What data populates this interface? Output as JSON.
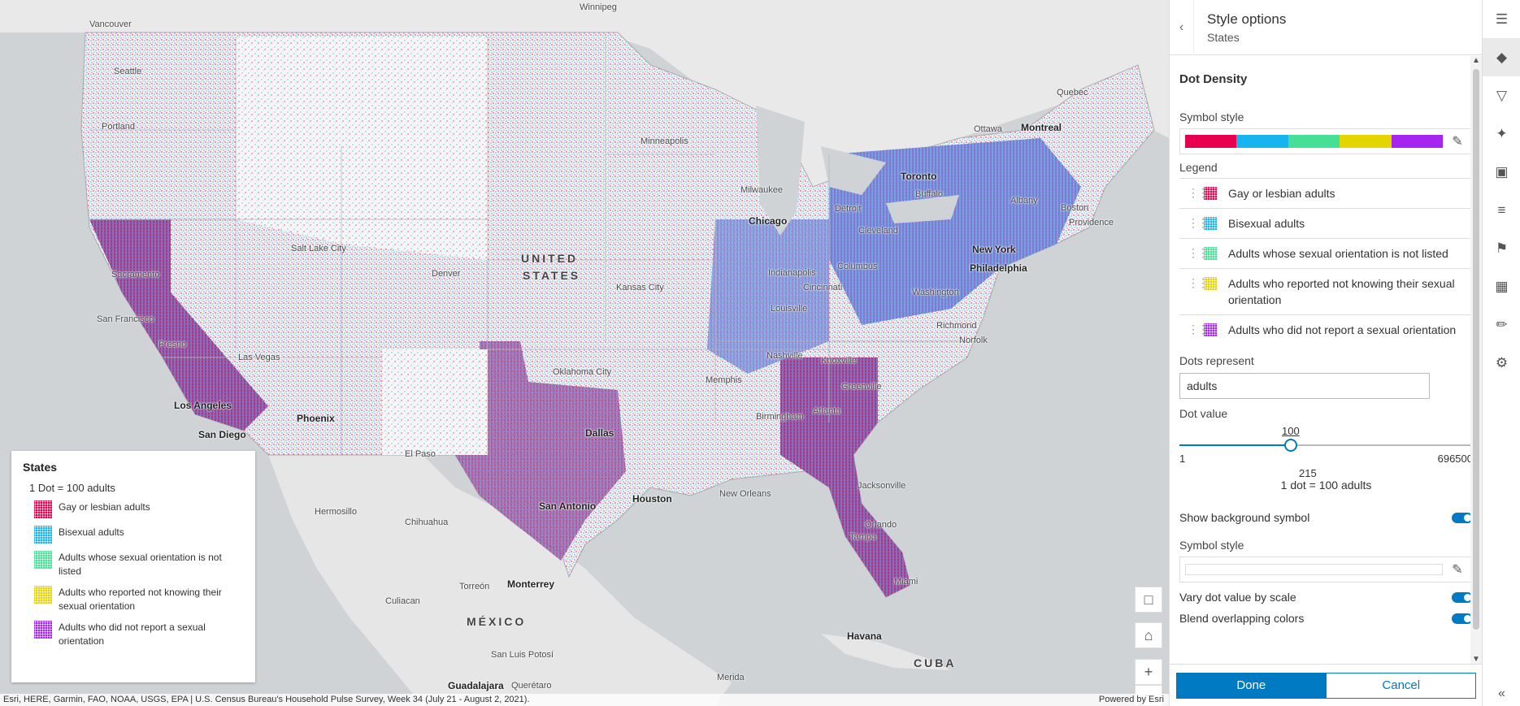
{
  "map": {
    "cities": [
      {
        "name": "Winnipeg",
        "big": false
      },
      {
        "name": "Vancouver",
        "big": false
      },
      {
        "name": "Seattle",
        "big": false
      },
      {
        "name": "Portland",
        "big": false
      },
      {
        "name": "Minneapolis",
        "big": false
      },
      {
        "name": "Milwaukee",
        "big": false
      },
      {
        "name": "Chicago",
        "big": true
      },
      {
        "name": "Detroit",
        "big": false
      },
      {
        "name": "Toronto",
        "big": true
      },
      {
        "name": "Ottawa",
        "big": false
      },
      {
        "name": "Montreal",
        "big": true
      },
      {
        "name": "Quebec",
        "big": false
      },
      {
        "name": "Buffalo",
        "big": false
      },
      {
        "name": "Albany",
        "big": false
      },
      {
        "name": "Boston",
        "big": false
      },
      {
        "name": "Providence",
        "big": false
      },
      {
        "name": "New York",
        "big": true
      },
      {
        "name": "Philadelphia",
        "big": true
      },
      {
        "name": "Washington",
        "big": false
      },
      {
        "name": "Richmond",
        "big": false
      },
      {
        "name": "Norfolk",
        "big": false
      },
      {
        "name": "Cleveland",
        "big": false
      },
      {
        "name": "Columbus",
        "big": false
      },
      {
        "name": "Indianapolis",
        "big": false
      },
      {
        "name": "Cincinnati",
        "big": false
      },
      {
        "name": "Louisville",
        "big": false
      },
      {
        "name": "Nashville",
        "big": false
      },
      {
        "name": "Knoxville",
        "big": false
      },
      {
        "name": "Memphis",
        "big": false
      },
      {
        "name": "Birmingham",
        "big": false
      },
      {
        "name": "Atlanta",
        "big": false
      },
      {
        "name": "Greenville",
        "big": false
      },
      {
        "name": "Jacksonville",
        "big": false
      },
      {
        "name": "Orlando",
        "big": false
      },
      {
        "name": "Tampa",
        "big": false
      },
      {
        "name": "Miami",
        "big": false
      },
      {
        "name": "New Orleans",
        "big": false
      },
      {
        "name": "Houston",
        "big": true
      },
      {
        "name": "San Antonio",
        "big": true
      },
      {
        "name": "Dallas",
        "big": true
      },
      {
        "name": "Oklahoma City",
        "big": false
      },
      {
        "name": "Kansas City",
        "big": false
      },
      {
        "name": "Denver",
        "big": false
      },
      {
        "name": "Salt Lake City",
        "big": false
      },
      {
        "name": "Sacramento",
        "big": false
      },
      {
        "name": "San Francisco",
        "big": false
      },
      {
        "name": "Fresno",
        "big": false
      },
      {
        "name": "Las Vegas",
        "big": false
      },
      {
        "name": "Los Angeles",
        "big": true
      },
      {
        "name": "San Diego",
        "big": true
      },
      {
        "name": "Phoenix",
        "big": true
      },
      {
        "name": "El Paso",
        "big": false
      },
      {
        "name": "Hermosillo",
        "big": false
      },
      {
        "name": "Chihuahua",
        "big": false
      },
      {
        "name": "Torreón",
        "big": false
      },
      {
        "name": "Monterrey",
        "big": true
      },
      {
        "name": "Culiacan",
        "big": false
      },
      {
        "name": "San Luis Potosí",
        "big": false
      },
      {
        "name": "Guadalajara",
        "big": true
      },
      {
        "name": "Querétaro",
        "big": false
      },
      {
        "name": "Havana",
        "big": true
      },
      {
        "name": "Merida",
        "big": false
      }
    ],
    "countries": [
      {
        "name": "UNITED"
      },
      {
        "name": "STATES"
      },
      {
        "name": "MÉXICO"
      },
      {
        "name": "CUBA"
      }
    ],
    "legend": {
      "title": "States",
      "subtitle": "1 Dot = 100 adults",
      "items": [
        "Gay or lesbian adults",
        "Bisexual adults",
        "Adults whose sexual orientation is not listed",
        "Adults who reported not knowing their sexual orientation",
        "Adults who did not report a sexual orientation"
      ]
    },
    "attribution": "Esri, HERE, Garmin, FAO, NOAA, USGS, EPA | U.S. Census Bureau's Household Pulse Survey, Week 34 (July 21 - August 2, 2021).",
    "powered_by": "Powered by Esri"
  },
  "colors": {
    "series": [
      "#e8004f",
      "#18b4ef",
      "#45e096",
      "#e4d500",
      "#a526f0"
    ],
    "accent": "#007ac2"
  },
  "panel": {
    "title": "Style options",
    "subtitle": "States",
    "section": "Dot Density",
    "symbol_style_label": "Symbol style",
    "legend_label": "Legend",
    "legend_items": [
      "Gay or lesbian adults",
      "Bisexual adults",
      "Adults whose sexual orientation is not listed",
      "Adults who reported not knowing their sexual orientation",
      "Adults who did not report a sexual orientation"
    ],
    "dots_represent_label": "Dots represent",
    "dots_represent_value": "adults",
    "dot_value_label": "Dot value",
    "slider": {
      "current": "100",
      "min": "1",
      "max": "696500",
      "tick": "215",
      "value_fraction": 0.38
    },
    "dot_equation": "1 dot = 100 adults",
    "show_bg_label": "Show background symbol",
    "bg_symbol_label": "Symbol style",
    "vary_label": "Vary dot value by scale",
    "blend_label": "Blend overlapping colors",
    "done": "Done",
    "cancel": "Cancel"
  },
  "toolbar": {
    "icons": [
      "properties-icon",
      "styles-icon",
      "filter-icon",
      "effects-icon",
      "popups-icon",
      "fields-icon",
      "labels-icon",
      "charts-icon",
      "sketch-icon",
      "configure-icon"
    ]
  }
}
